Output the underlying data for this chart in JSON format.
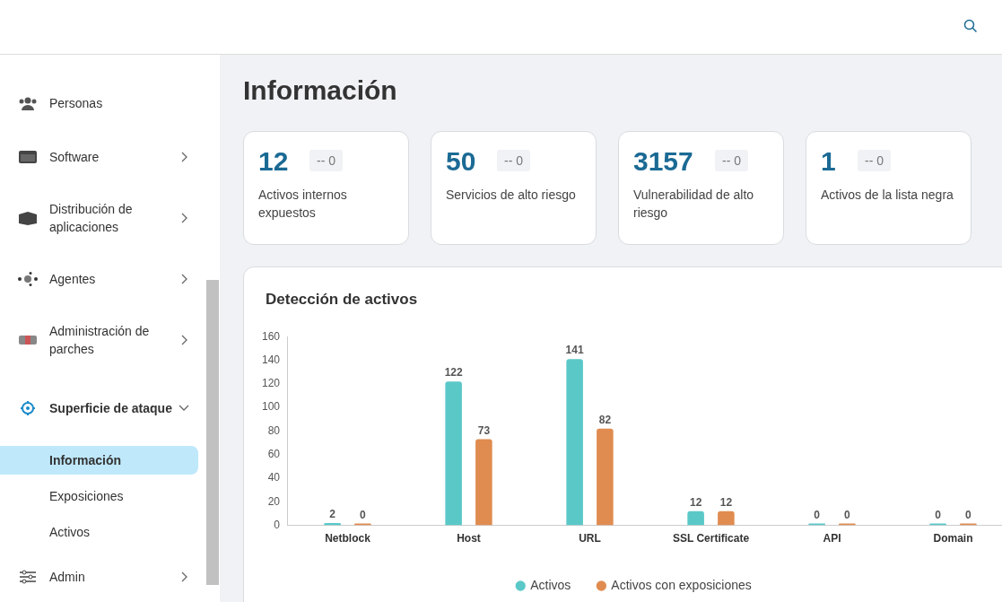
{
  "chart_data": [
    {
      "type": "other",
      "annotations": [
        "Personas",
        "Software",
        "Distribución de aplicaciones",
        "Agentes",
        "Administración de parches",
        "Superficie de ataque",
        "Información",
        "Exposiciones",
        "Activos",
        "Admin"
      ]
    },
    {
      "type": "other",
      "title": "Información",
      "annotations": [
        "12",
        "-- 0",
        "Activos internos expuestos",
        "50",
        "-- 0",
        "Servicios de alto riesgo",
        "3157",
        "-- 0",
        "Vulnerabilidad de alto riesgo",
        "1",
        "-- 0",
        "Activos de la lista negra"
      ]
    },
    {
      "type": "bar",
      "title": "Detección de activos",
      "categories": [
        "Netblock",
        "Host",
        "URL",
        "SSL Certificate",
        "API",
        "Domain"
      ],
      "series": [
        {
          "name": "Activos",
          "color": "#5bc8c8",
          "values": [
            2,
            122,
            141,
            12,
            0,
            0
          ]
        },
        {
          "name": "Activos con exposiciones",
          "color": "#e08c50",
          "values": [
            0,
            73,
            82,
            12,
            0,
            0
          ]
        }
      ],
      "ylim": [
        0,
        160
      ],
      "yticks": [
        0,
        20,
        40,
        60,
        80,
        100,
        120,
        140,
        160
      ],
      "grid": false,
      "legend": "bottom",
      "data_labels": true
    }
  ]
}
